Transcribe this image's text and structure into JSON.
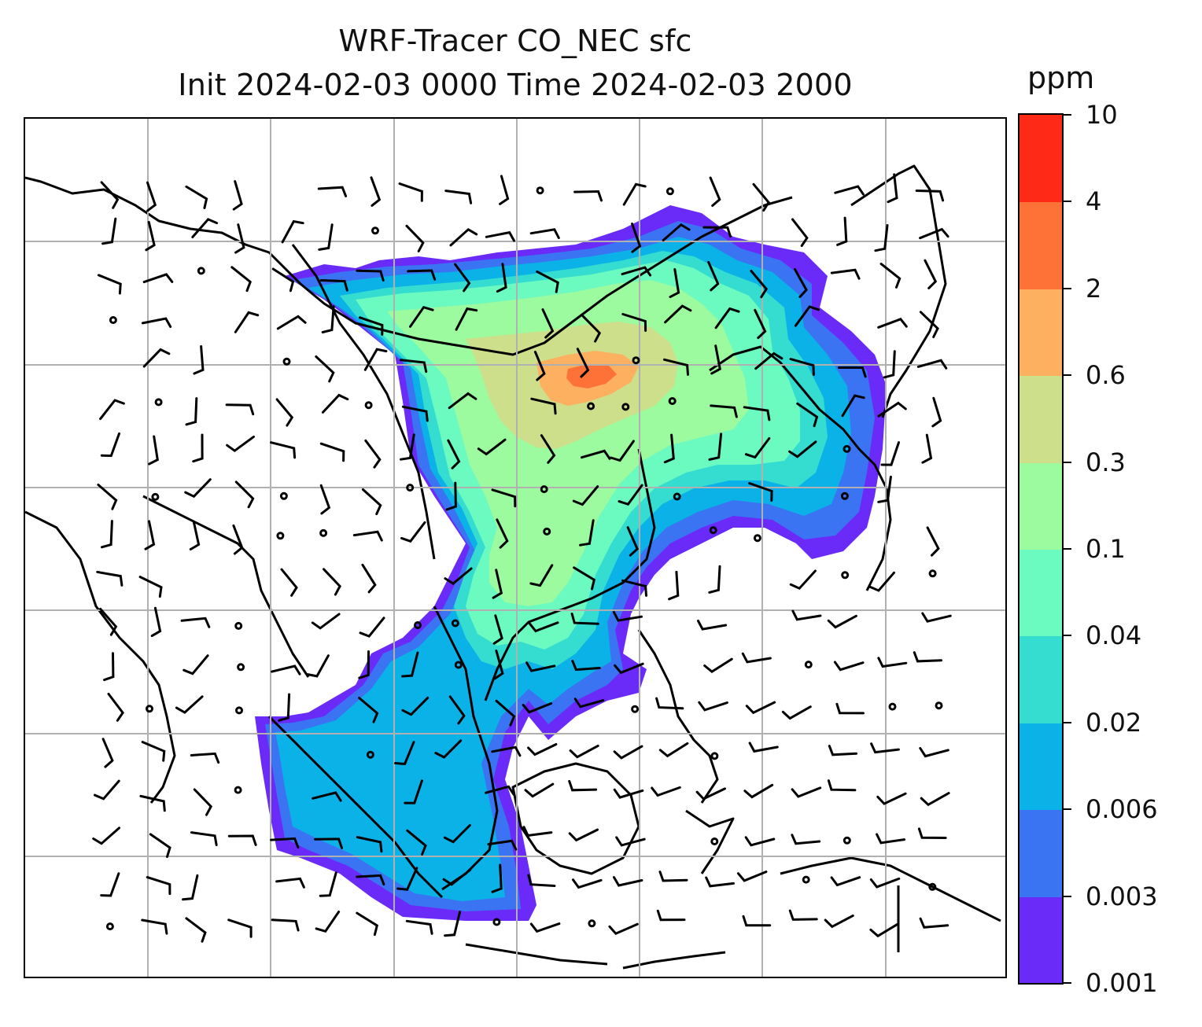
{
  "title": {
    "line1": "WRF-Tracer CO_NEC sfc",
    "line2": "Init 2024-02-03 0000 Time 2024-02-03 2000"
  },
  "colorbar": {
    "unit": "ppm",
    "tick_labels": [
      "0.001",
      "0.003",
      "0.006",
      "0.02",
      "0.04",
      "0.1",
      "0.3",
      "0.6",
      "2",
      "4",
      "10"
    ],
    "colors": [
      "#6a2bf8",
      "#3a74f2",
      "#0ab2e7",
      "#35dcd0",
      "#6bfac0",
      "#9cfa9f",
      "#cddf8a",
      "#fcb060",
      "#fe7238",
      "#fe2a17"
    ]
  },
  "map": {
    "content": "Surface CO_NEC tracer concentration with wind barbs over East/Southeast Asia",
    "gridlines": true
  }
}
